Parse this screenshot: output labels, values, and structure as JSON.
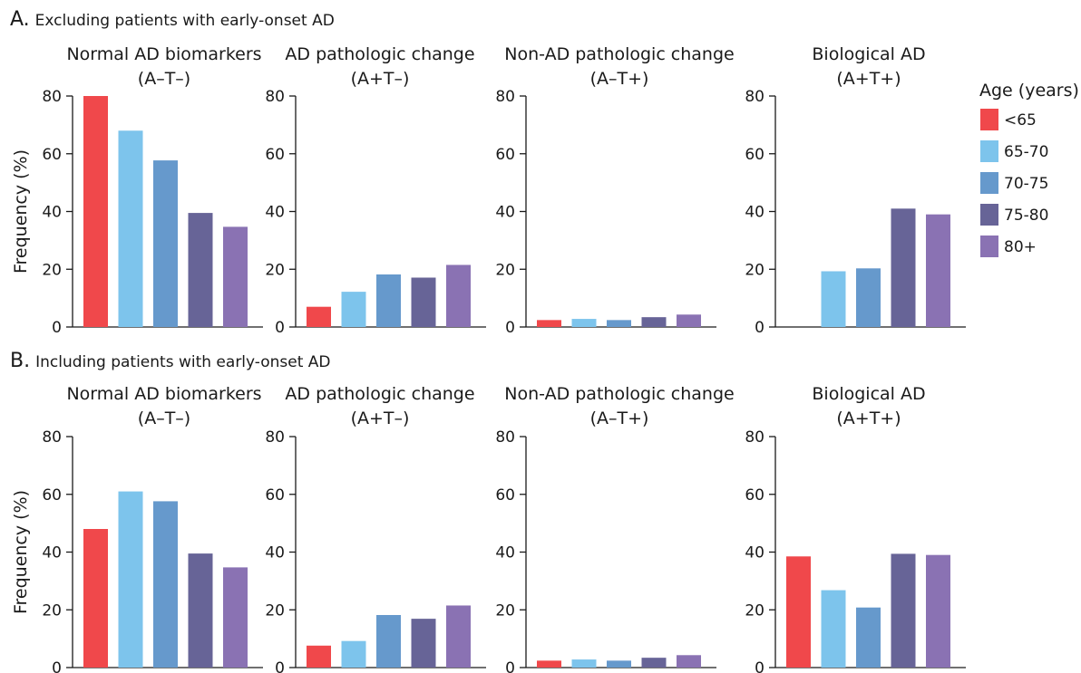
{
  "legend": {
    "title": "Age (years)",
    "placement": "right",
    "entries": [
      {
        "label": "<65",
        "color": "#f0484b"
      },
      {
        "label": "65-70",
        "color": "#7dc4ec"
      },
      {
        "label": "70-75",
        "color": "#6699cc"
      },
      {
        "label": "75-80",
        "color": "#676497"
      },
      {
        "label": "80+",
        "color": "#8a72b3"
      }
    ]
  },
  "sections": [
    {
      "letter": "A.",
      "label": "Excluding patients with early-onset AD"
    },
    {
      "letter": "B.",
      "label": "Including patients with early-onset AD"
    }
  ],
  "chart_data": [
    {
      "type": "bar",
      "section": 0,
      "title": "Normal AD biomarkers",
      "subtitle": "(A–T–)",
      "ylabel": "Frequency (%)",
      "ylim": [
        0,
        80
      ],
      "yticks": [
        0,
        20,
        40,
        60,
        80
      ],
      "categories": [
        "<65",
        "65-70",
        "70-75",
        "75-80",
        "80+"
      ],
      "values": [
        80,
        68,
        57.7,
        39.5,
        34.7
      ]
    },
    {
      "type": "bar",
      "section": 0,
      "title": "AD pathologic change",
      "subtitle": "(A+T–)",
      "ylabel": "",
      "ylim": [
        0,
        80
      ],
      "yticks": [
        0,
        20,
        40,
        60,
        80
      ],
      "categories": [
        "<65",
        "65-70",
        "70-75",
        "75-80",
        "80+"
      ],
      "values": [
        7,
        12.2,
        18.2,
        17.1,
        21.5
      ]
    },
    {
      "type": "bar",
      "section": 0,
      "title": "Non-AD pathologic change",
      "subtitle": "(A–T+)",
      "ylabel": "",
      "ylim": [
        0,
        80
      ],
      "yticks": [
        0,
        20,
        40,
        60,
        80
      ],
      "categories": [
        "<65",
        "65-70",
        "70-75",
        "75-80",
        "80+"
      ],
      "values": [
        2.4,
        2.8,
        2.4,
        3.4,
        4.3
      ]
    },
    {
      "type": "bar",
      "section": 0,
      "title": "Biological AD",
      "subtitle": "(A+T+)",
      "ylabel": "",
      "ylim": [
        0,
        80
      ],
      "yticks": [
        0,
        20,
        40,
        60,
        80
      ],
      "categories": [
        "<65",
        "65-70",
        "70-75",
        "75-80",
        "80+"
      ],
      "values": [
        0,
        19.3,
        20.3,
        41,
        39
      ]
    },
    {
      "type": "bar",
      "section": 1,
      "title": "Normal AD biomarkers",
      "subtitle": "(A–T–)",
      "ylabel": "Frequency (%)",
      "ylim": [
        0,
        80
      ],
      "yticks": [
        0,
        20,
        40,
        60,
        80
      ],
      "categories": [
        "<65",
        "65-70",
        "70-75",
        "75-80",
        "80+"
      ],
      "values": [
        48,
        61,
        57.6,
        39.5,
        34.7
      ]
    },
    {
      "type": "bar",
      "section": 1,
      "title": "AD pathologic change",
      "subtitle": "(A+T–)",
      "ylabel": "",
      "ylim": [
        0,
        80
      ],
      "yticks": [
        0,
        20,
        40,
        60,
        80
      ],
      "categories": [
        "<65",
        "65-70",
        "70-75",
        "75-80",
        "80+"
      ],
      "values": [
        7.6,
        9.2,
        18.2,
        16.9,
        21.5
      ]
    },
    {
      "type": "bar",
      "section": 1,
      "title": "Non-AD pathologic change",
      "subtitle": "(A–T+)",
      "ylabel": "",
      "ylim": [
        0,
        80
      ],
      "yticks": [
        0,
        20,
        40,
        60,
        80
      ],
      "categories": [
        "<65",
        "65-70",
        "70-75",
        "75-80",
        "80+"
      ],
      "values": [
        2.4,
        2.8,
        2.4,
        3.4,
        4.3
      ]
    },
    {
      "type": "bar",
      "section": 1,
      "title": "Biological AD",
      "subtitle": "(A+T+)",
      "ylabel": "",
      "ylim": [
        0,
        80
      ],
      "yticks": [
        0,
        20,
        40,
        60,
        80
      ],
      "categories": [
        "<65",
        "65-70",
        "70-75",
        "75-80",
        "80+"
      ],
      "values": [
        38.5,
        26.8,
        20.8,
        39.4,
        39
      ]
    }
  ]
}
